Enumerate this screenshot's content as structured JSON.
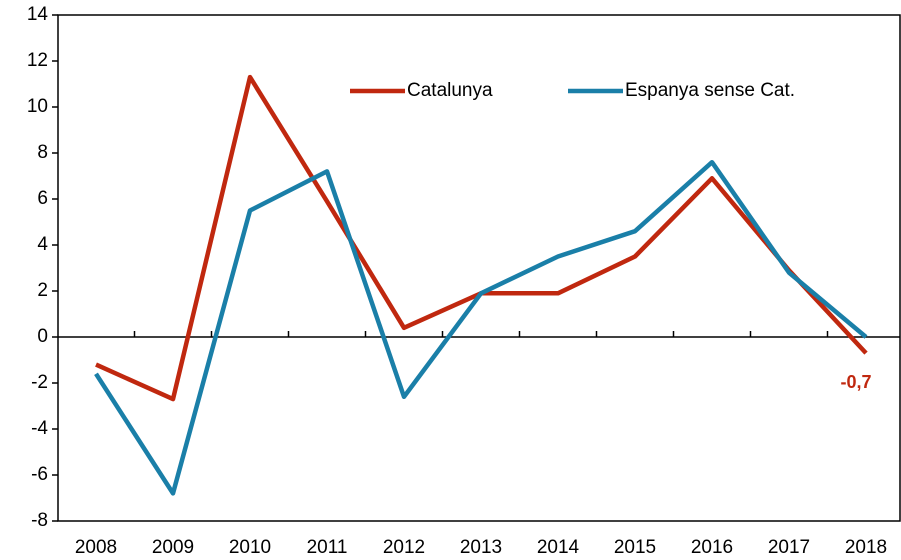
{
  "chart_data": {
    "type": "line",
    "categories": [
      "2008",
      "2009",
      "2010",
      "2011",
      "2012",
      "2013",
      "2014",
      "2015",
      "2016",
      "2017",
      "2018"
    ],
    "series": [
      {
        "name": "Catalunya",
        "color": "#c0280f",
        "values": [
          -1.2,
          -2.7,
          11.3,
          5.9,
          0.4,
          1.9,
          1.9,
          3.5,
          6.9,
          2.9,
          -0.7
        ],
        "value_labels": [
          null,
          null,
          null,
          null,
          null,
          null,
          null,
          null,
          null,
          null,
          "-0,7"
        ]
      },
      {
        "name": "Espanya sense Cat.",
        "color": "#1a7fa8",
        "values": [
          -1.6,
          -6.8,
          5.5,
          7.2,
          -2.6,
          1.9,
          3.5,
          4.6,
          7.6,
          2.8,
          0.0
        ]
      }
    ],
    "ylim": [
      -8,
      14
    ],
    "yticks": [
      -8,
      -6,
      -4,
      -2,
      0,
      2,
      4,
      6,
      8,
      10,
      12,
      14
    ],
    "legend": "top-right"
  }
}
